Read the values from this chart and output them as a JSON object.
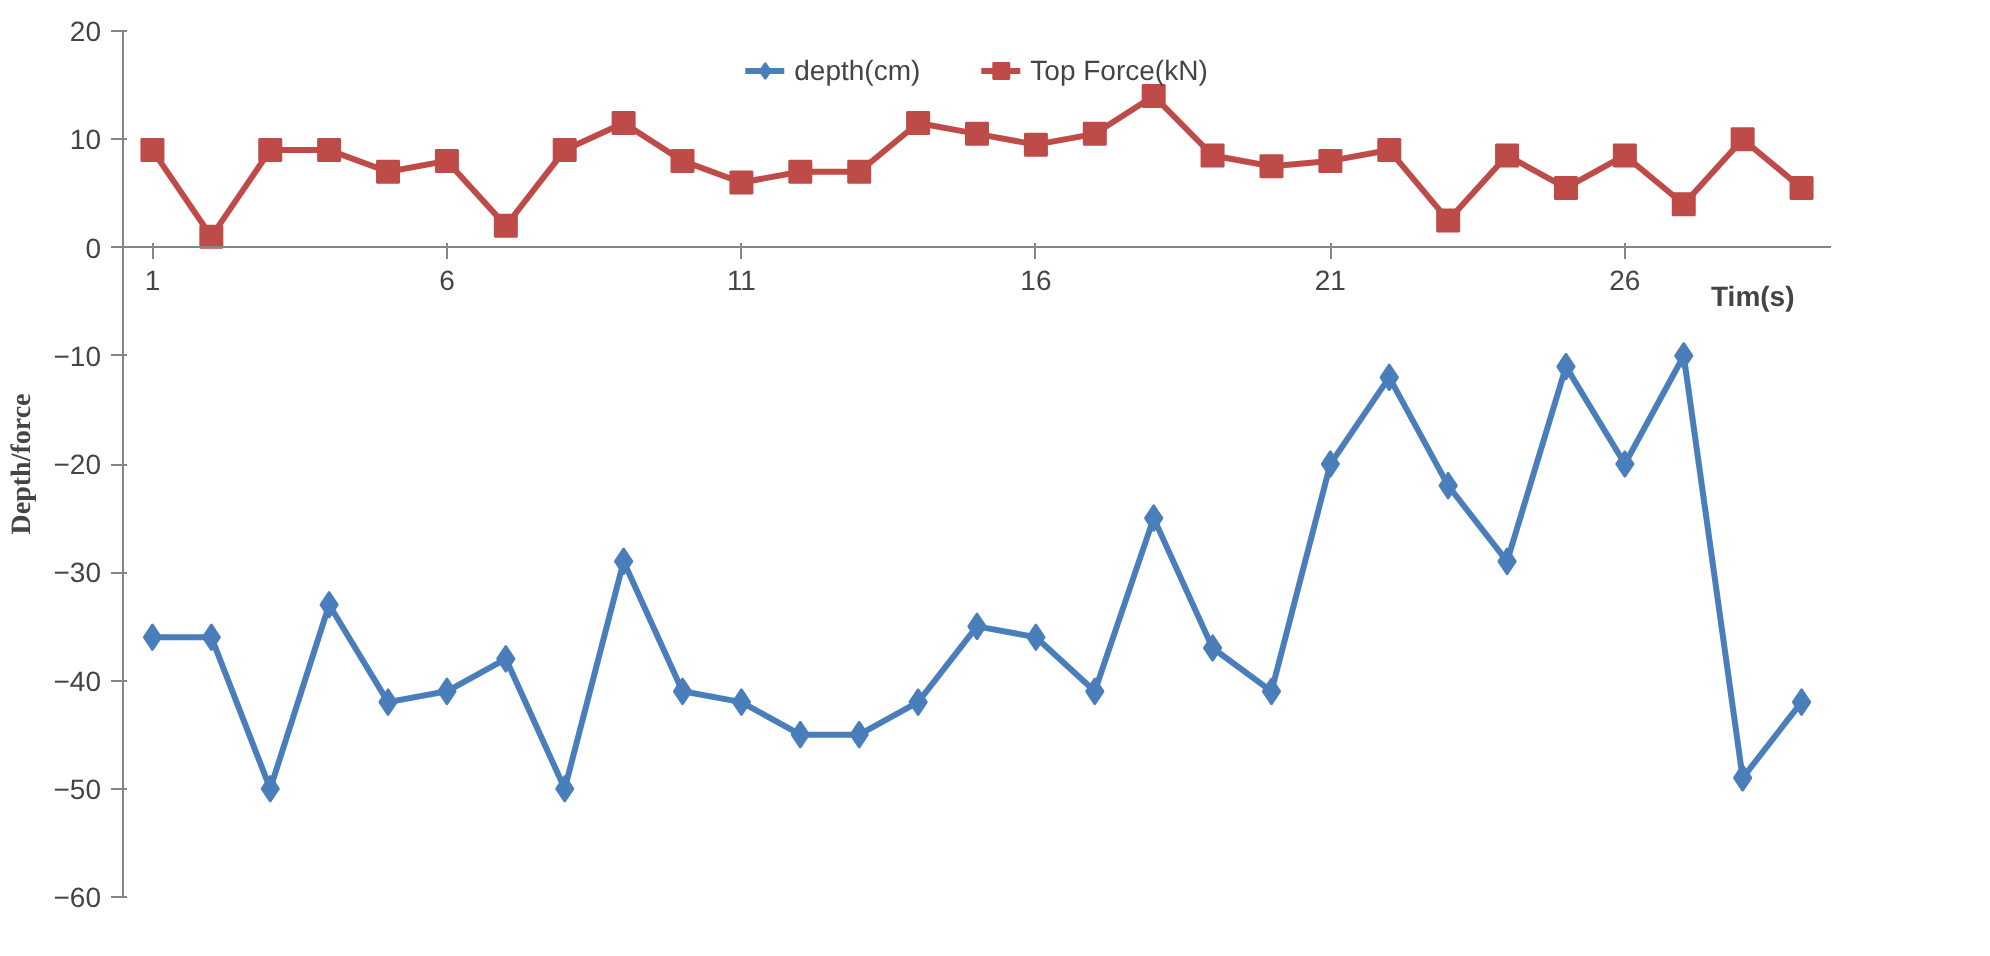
{
  "chart_data": {
    "type": "line",
    "xlabel": "Tim(s)",
    "ylabel": "Depth/force",
    "x": [
      1,
      2,
      3,
      4,
      5,
      6,
      7,
      8,
      9,
      10,
      11,
      12,
      13,
      14,
      15,
      16,
      17,
      18,
      19,
      20,
      21,
      22,
      23,
      24,
      25,
      26,
      27,
      28,
      29
    ],
    "series": [
      {
        "name": "depth(cm)",
        "color": "#4a7ebb",
        "marker": "diamond",
        "values": [
          -36,
          -36,
          -50,
          -33,
          -42,
          -41,
          -38,
          -50,
          -29,
          -41,
          -42,
          -45,
          -45,
          -42,
          -35,
          -36,
          -41,
          -25,
          -37,
          -41,
          -20,
          -12,
          -22,
          -29,
          -11,
          -20,
          -10,
          -49,
          -42
        ]
      },
      {
        "name": "Top Force(kN)",
        "color": "#be4b48",
        "marker": "square",
        "values": [
          9,
          1,
          9,
          9,
          7,
          8,
          2,
          9,
          11.5,
          8,
          6,
          7,
          7,
          11.5,
          10.5,
          9.5,
          10.5,
          14,
          8.5,
          7.5,
          8,
          9,
          2.5,
          8.5,
          5.5,
          8.5,
          4,
          10,
          5.5
        ]
      }
    ],
    "xlim": [
      0.5,
      29.5
    ],
    "xticks": [
      1,
      6,
      11,
      16,
      21,
      26
    ],
    "ylim": [
      -60,
      20
    ],
    "yticks": [
      -60,
      -50,
      -40,
      -30,
      -20,
      -10,
      0,
      10,
      20
    ],
    "grid": false,
    "legend": "top",
    "line_style": "solid"
  }
}
